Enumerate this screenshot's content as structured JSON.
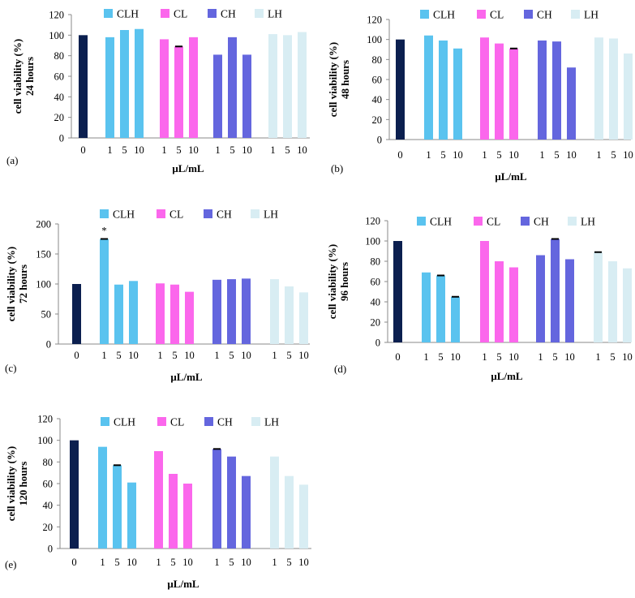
{
  "figure": {
    "legend_labels": [
      "CLH",
      "CL",
      "CH",
      "LH"
    ],
    "colors": {
      "control": "#0b1f4f",
      "CLH": "#5ac3ef",
      "CL": "#fb67ec",
      "CH": "#6466de",
      "LH": "#d8edf3"
    },
    "group_tick_labels": [
      "1",
      "5",
      "10"
    ],
    "control_tick_label": "0"
  },
  "chart_data": [
    {
      "panel": "(a)",
      "type": "bar",
      "ylabel": "cell viability (%)",
      "ylabel2": "24 hours",
      "xlabel": "μL/mL",
      "ylim": [
        0,
        120
      ],
      "yticks": [
        0,
        20,
        40,
        60,
        80,
        100,
        120
      ],
      "control": 100,
      "series": [
        {
          "name": "CLH",
          "values": [
            98,
            105,
            106
          ]
        },
        {
          "name": "CL",
          "values": [
            96,
            89,
            98
          ]
        },
        {
          "name": "CH",
          "values": [
            81,
            98,
            81
          ]
        },
        {
          "name": "LH",
          "values": [
            101,
            100,
            103
          ]
        }
      ],
      "errors": [
        {
          "series": "CL",
          "index": 1
        }
      ],
      "annotations": []
    },
    {
      "panel": "(b)",
      "type": "bar",
      "ylabel": "cell viability (%)",
      "ylabel2": "48 hours",
      "xlabel": "μL/mL",
      "ylim": [
        0,
        120
      ],
      "yticks": [
        0,
        20,
        40,
        60,
        80,
        100,
        120
      ],
      "control": 100,
      "series": [
        {
          "name": "CLH",
          "values": [
            104,
            99,
            91
          ]
        },
        {
          "name": "CL",
          "values": [
            102,
            96,
            91
          ]
        },
        {
          "name": "CH",
          "values": [
            99,
            98,
            72
          ]
        },
        {
          "name": "LH",
          "values": [
            102,
            101,
            86
          ]
        }
      ],
      "errors": [
        {
          "series": "CL",
          "index": 2
        }
      ],
      "annotations": []
    },
    {
      "panel": "(c)",
      "type": "bar",
      "ylabel": "cell viability (%)",
      "ylabel2": "72  hours",
      "xlabel": "μL/mL",
      "ylim": [
        0,
        200
      ],
      "yticks": [
        0,
        50,
        100,
        150,
        200
      ],
      "control": 100,
      "series": [
        {
          "name": "CLH",
          "values": [
            175,
            99,
            105
          ]
        },
        {
          "name": "CL",
          "values": [
            101,
            99,
            87
          ]
        },
        {
          "name": "CH",
          "values": [
            107,
            108,
            109
          ]
        },
        {
          "name": "LH",
          "values": [
            108,
            96,
            86
          ]
        }
      ],
      "errors": [
        {
          "series": "CLH",
          "index": 0
        }
      ],
      "annotations": [
        {
          "series": "CLH",
          "index": 0,
          "text": "*"
        }
      ]
    },
    {
      "panel": "(d)",
      "type": "bar",
      "ylabel": "cell viability (%)",
      "ylabel2": "96  hours",
      "xlabel": "μL/mL",
      "ylim": [
        0,
        120
      ],
      "yticks": [
        0,
        20,
        40,
        60,
        80,
        100,
        120
      ],
      "control": 100,
      "series": [
        {
          "name": "CLH",
          "values": [
            69,
            66,
            45
          ]
        },
        {
          "name": "CL",
          "values": [
            100,
            80,
            74
          ]
        },
        {
          "name": "CH",
          "values": [
            86,
            102,
            82
          ]
        },
        {
          "name": "LH",
          "values": [
            89,
            80,
            73
          ]
        }
      ],
      "errors": [
        {
          "series": "CLH",
          "index": 1
        },
        {
          "series": "CLH",
          "index": 2
        },
        {
          "series": "CH",
          "index": 1
        },
        {
          "series": "LH",
          "index": 0
        }
      ],
      "annotations": []
    },
    {
      "panel": "(e)",
      "type": "bar",
      "ylabel": "cell viability (%)",
      "ylabel2": "120 hours",
      "xlabel": "μL/mL",
      "ylim": [
        0,
        120
      ],
      "yticks": [
        0,
        20,
        40,
        60,
        80,
        100,
        120
      ],
      "control": 100,
      "series": [
        {
          "name": "CLH",
          "values": [
            94,
            77,
            61
          ]
        },
        {
          "name": "CL",
          "values": [
            90,
            69,
            60
          ]
        },
        {
          "name": "CH",
          "values": [
            92,
            85,
            67
          ]
        },
        {
          "name": "LH",
          "values": [
            85,
            67,
            59
          ]
        }
      ],
      "errors": [
        {
          "series": "CLH",
          "index": 1
        },
        {
          "series": "CH",
          "index": 0
        }
      ],
      "annotations": []
    }
  ]
}
